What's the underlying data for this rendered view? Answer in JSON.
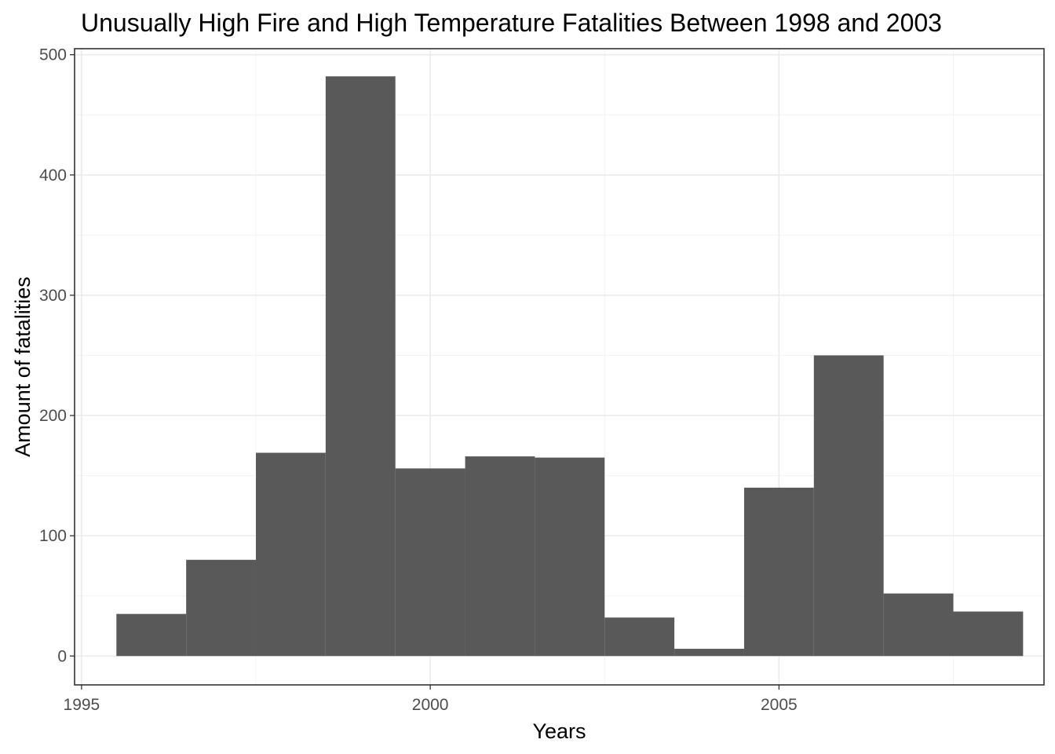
{
  "chart_data": {
    "type": "bar",
    "title": "Unusually High Fire and High Temperature Fatalities Between 1998 and 2003",
    "xlabel": "Years",
    "ylabel": "Amount of fatalities",
    "grid": true,
    "bar_color": "#595959",
    "xlim": [
      1994.9,
      2008.8
    ],
    "ylim": [
      -24,
      505
    ],
    "x_ticks": [
      1995,
      2000,
      2005
    ],
    "x_tick_labels": [
      "1995",
      "2000",
      "2005"
    ],
    "y_ticks": [
      0,
      100,
      200,
      300,
      400,
      500
    ],
    "y_tick_labels": [
      "0",
      "100",
      "200",
      "300",
      "400",
      "500"
    ],
    "bins": [
      {
        "start": 1995.5,
        "end": 1996.5,
        "value": 35
      },
      {
        "start": 1996.5,
        "end": 1997.5,
        "value": 80
      },
      {
        "start": 1997.5,
        "end": 1998.5,
        "value": 169
      },
      {
        "start": 1998.5,
        "end": 1999.5,
        "value": 482
      },
      {
        "start": 1999.5,
        "end": 2000.5,
        "value": 156
      },
      {
        "start": 2000.5,
        "end": 2001.5,
        "value": 166
      },
      {
        "start": 2001.5,
        "end": 2002.5,
        "value": 165
      },
      {
        "start": 2002.5,
        "end": 2003.5,
        "value": 32
      },
      {
        "start": 2003.5,
        "end": 2004.5,
        "value": 6
      },
      {
        "start": 2004.5,
        "end": 2005.5,
        "value": 140
      },
      {
        "start": 2005.5,
        "end": 2006.5,
        "value": 250
      },
      {
        "start": 2006.5,
        "end": 2007.5,
        "value": 52
      },
      {
        "start": 2007.5,
        "end": 2008.5,
        "value": 37
      }
    ]
  }
}
